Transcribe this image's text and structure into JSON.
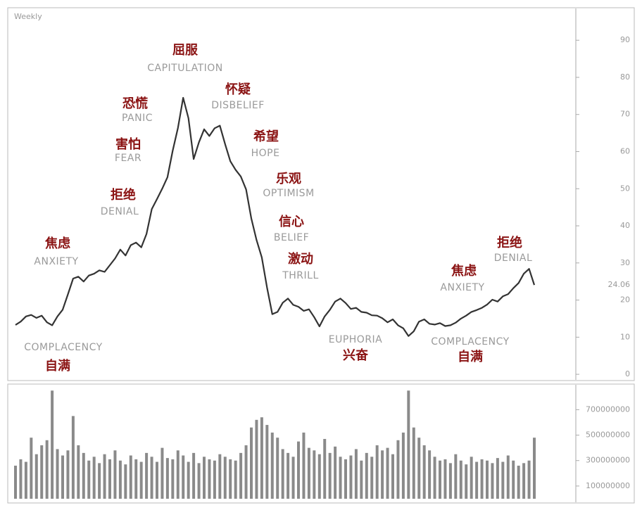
{
  "chart_data": [
    {
      "type": "line",
      "title": "Weekly",
      "categories": [
        null,
        null,
        null,
        null,
        null,
        null,
        null,
        null,
        null,
        null,
        null,
        null,
        null,
        null,
        null,
        null,
        null,
        null,
        null,
        null,
        null,
        null,
        null,
        null,
        null,
        null,
        null,
        null,
        null,
        null,
        null,
        null,
        null,
        null,
        null,
        null,
        null,
        null,
        null,
        null,
        null,
        null,
        null,
        null,
        null,
        null,
        null,
        null,
        null,
        null,
        null,
        null,
        null,
        null,
        null,
        null,
        null,
        null,
        null,
        null,
        null,
        null,
        null,
        null,
        null,
        null,
        null,
        null,
        null,
        null,
        null,
        null,
        null,
        null,
        null,
        null,
        null,
        null,
        null,
        null,
        null,
        null,
        null,
        null,
        null,
        null,
        null,
        null,
        null,
        null,
        null,
        null,
        null,
        null,
        null,
        null,
        null,
        null,
        null,
        null
      ],
      "series": [
        {
          "color": "#333333",
          "values": [
            13.3,
            14.2,
            15.6,
            16.0,
            15.2,
            15.8,
            14.0,
            13.2,
            15.6,
            17.4,
            21.5,
            25.8,
            26.3,
            25.0,
            26.6,
            27.1,
            28.0,
            27.6,
            29.4,
            31.2,
            33.6,
            32.0,
            34.8,
            35.5,
            34.2,
            37.8,
            44.5,
            47.2,
            50.0,
            53.1,
            60.2,
            66.4,
            74.5,
            69.0,
            58.0,
            62.5,
            66.0,
            64.2,
            66.3,
            67.0,
            62.0,
            57.4,
            55.1,
            53.3,
            49.8,
            42.0,
            36.2,
            31.5,
            23.4,
            16.2,
            16.8,
            19.3,
            20.4,
            18.7,
            18.2,
            17.1,
            17.5,
            15.4,
            12.9,
            15.6,
            17.4,
            19.6,
            20.4,
            19.2,
            17.6,
            17.9,
            16.8,
            16.6,
            15.9,
            15.8,
            15.1,
            14.0,
            14.8,
            13.2,
            12.4,
            10.3,
            11.6,
            14.2,
            14.8,
            13.6,
            13.4,
            13.8,
            13.0,
            13.2,
            13.9,
            15.0,
            15.8,
            16.8,
            17.3,
            17.9,
            18.8,
            20.1,
            19.6,
            21.0,
            21.6,
            23.2,
            24.6,
            27.1,
            28.4,
            24.06
          ]
        }
      ],
      "ylim": [
        -1.5,
        98
      ],
      "yticks": [
        0,
        10,
        20,
        30,
        40,
        50,
        60,
        70,
        80,
        90
      ],
      "last_price": {
        "value": 24.06,
        "label": "24.06"
      },
      "annotations": [
        {
          "en": "COMPLACENCY",
          "zh": "自满"
        },
        {
          "en": "ANXIETY",
          "zh": "焦虑"
        },
        {
          "en": "DENIAL",
          "zh": "拒绝"
        },
        {
          "en": "FEAR",
          "zh": "害怕"
        },
        {
          "en": "PANIC",
          "zh": "恐慌"
        },
        {
          "en": "CAPITULATION",
          "zh": "屈服"
        },
        {
          "en": "DISBELIEF",
          "zh": "怀疑"
        },
        {
          "en": "HOPE",
          "zh": "希望"
        },
        {
          "en": "OPTIMISM",
          "zh": "乐观"
        },
        {
          "en": "BELIEF",
          "zh": "信心"
        },
        {
          "en": "THRILL",
          "zh": "激动"
        },
        {
          "en": "EUPHORIA",
          "zh": "兴奋"
        },
        {
          "en": "ANXIETY",
          "zh": "焦虑"
        },
        {
          "en": "DENIAL",
          "zh": "拒绝"
        },
        {
          "en": "COMPLACENCY",
          "zh": "自满"
        }
      ]
    },
    {
      "type": "bar",
      "categories": [
        null,
        null,
        null,
        null,
        null,
        null,
        null,
        null,
        null,
        null,
        null,
        null,
        null,
        null,
        null,
        null,
        null,
        null,
        null,
        null,
        null,
        null,
        null,
        null,
        null,
        null,
        null,
        null,
        null,
        null,
        null,
        null,
        null,
        null,
        null,
        null,
        null,
        null,
        null,
        null,
        null,
        null,
        null,
        null,
        null,
        null,
        null,
        null,
        null,
        null,
        null,
        null,
        null,
        null,
        null,
        null,
        null,
        null,
        null,
        null,
        null,
        null,
        null,
        null,
        null,
        null,
        null,
        null,
        null,
        null,
        null,
        null,
        null,
        null,
        null,
        null,
        null,
        null,
        null,
        null,
        null,
        null,
        null,
        null,
        null,
        null,
        null,
        null,
        null,
        null,
        null,
        null,
        null,
        null,
        null,
        null,
        null,
        null,
        null,
        null
      ],
      "color": "#8a8a8a",
      "values": [
        260000000,
        310000000,
        290000000,
        480000000,
        350000000,
        420000000,
        460000000,
        850000000,
        390000000,
        340000000,
        380000000,
        650000000,
        420000000,
        360000000,
        300000000,
        330000000,
        280000000,
        350000000,
        310000000,
        380000000,
        300000000,
        270000000,
        340000000,
        310000000,
        290000000,
        360000000,
        330000000,
        290000000,
        400000000,
        320000000,
        310000000,
        380000000,
        340000000,
        290000000,
        360000000,
        280000000,
        330000000,
        310000000,
        300000000,
        350000000,
        330000000,
        310000000,
        300000000,
        360000000,
        420000000,
        560000000,
        620000000,
        640000000,
        580000000,
        520000000,
        480000000,
        390000000,
        360000000,
        330000000,
        450000000,
        520000000,
        400000000,
        380000000,
        350000000,
        470000000,
        360000000,
        410000000,
        330000000,
        310000000,
        340000000,
        390000000,
        300000000,
        360000000,
        330000000,
        420000000,
        380000000,
        400000000,
        350000000,
        460000000,
        520000000,
        850000000,
        560000000,
        480000000,
        420000000,
        380000000,
        330000000,
        300000000,
        310000000,
        280000000,
        350000000,
        300000000,
        270000000,
        330000000,
        290000000,
        310000000,
        300000000,
        280000000,
        320000000,
        290000000,
        340000000,
        300000000,
        260000000,
        280000000,
        300000000,
        480000000
      ],
      "ylim": [
        0,
        890000000
      ],
      "yticks": [
        100000000,
        300000000,
        500000000,
        700000000
      ]
    }
  ]
}
